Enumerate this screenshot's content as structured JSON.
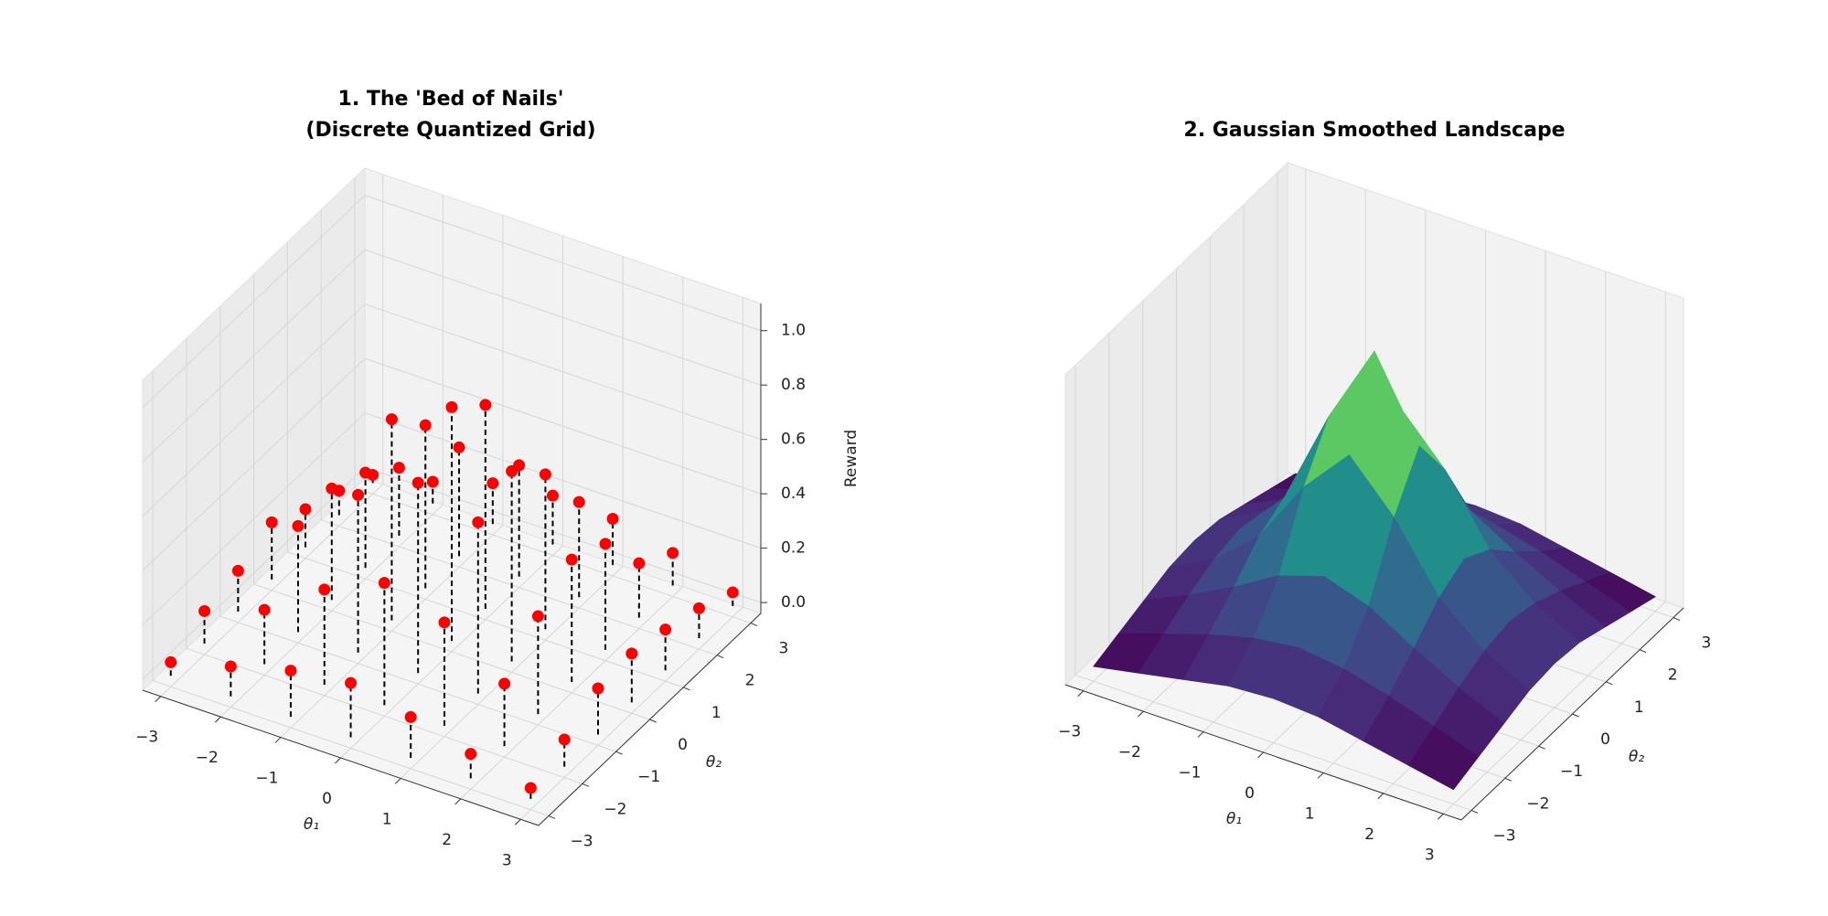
{
  "chart_data": [
    {
      "type": "stem3d",
      "title": [
        "1. The 'Bed of Nails'",
        "(Discrete Quantized Grid)"
      ],
      "xlabel": "θ₁",
      "ylabel": "θ₂",
      "zlabel": "Reward",
      "x": [
        -3,
        -2,
        -1,
        0,
        1,
        2,
        3
      ],
      "y": [
        -3,
        -2,
        -1,
        0,
        1,
        2,
        3
      ],
      "z": [
        [
          0.05,
          0.12,
          0.15,
          0.21,
          0.14,
          0.09,
          0.03
        ],
        [
          0.11,
          0.2,
          0.39,
          0.41,
          0.35,
          0.25,
          0.08
        ],
        [
          0.17,
          0.35,
          0.58,
          0.74,
          0.6,
          0.4,
          0.15
        ],
        [
          0.2,
          0.45,
          0.7,
          0.86,
          0.75,
          0.41,
          0.18
        ],
        [
          0.15,
          0.38,
          0.63,
          0.7,
          0.57,
          0.35,
          0.17
        ],
        [
          0.09,
          0.23,
          0.36,
          0.45,
          0.39,
          0.2,
          0.12
        ],
        [
          0.04,
          0.1,
          0.17,
          0.18,
          0.15,
          0.11,
          0.05
        ]
      ],
      "color": "#ff0000",
      "stem_color": "#000000",
      "xlim": [
        -3.3,
        3.3
      ],
      "ylim": [
        -3.3,
        3.3
      ],
      "zlim": [
        -0.04,
        1.1
      ],
      "xticks": [
        {
          "value": -3,
          "label": "−3"
        },
        {
          "value": -2,
          "label": "−2"
        },
        {
          "value": -1,
          "label": "−1"
        },
        0,
        1,
        2,
        3
      ],
      "yticks": [
        {
          "value": -3,
          "label": "−3"
        },
        {
          "value": -2,
          "label": "−2"
        },
        {
          "value": -1,
          "label": "−1"
        },
        0,
        1,
        2,
        3
      ],
      "zticks": [
        {
          "value": 0,
          "label": "0.0"
        },
        0.2,
        0.4,
        0.6,
        0.8,
        {
          "value": 1,
          "label": "1.0"
        }
      ],
      "grid": true
    },
    {
      "type": "surface",
      "title": [
        "2. Gaussian Smoothed Landscape"
      ],
      "xlabel": "θ₁",
      "ylabel": "θ₂",
      "x": [
        -3,
        -2.25,
        -1.5,
        -0.75,
        0,
        0.75,
        1.5,
        2.25,
        3
      ],
      "y": [
        -3,
        -2.25,
        -1.5,
        -0.75,
        0,
        0.75,
        1.5,
        2.25,
        3
      ],
      "z": [
        [
          0.05,
          0.08,
          0.11,
          0.14,
          0.15,
          0.14,
          0.11,
          0.08,
          0.05
        ],
        [
          0.08,
          0.13,
          0.18,
          0.22,
          0.24,
          0.22,
          0.18,
          0.13,
          0.08
        ],
        [
          0.11,
          0.18,
          0.26,
          0.35,
          0.4,
          0.35,
          0.26,
          0.18,
          0.11
        ],
        [
          0.14,
          0.22,
          0.35,
          0.57,
          0.73,
          0.57,
          0.35,
          0.22,
          0.14
        ],
        [
          0.15,
          0.24,
          0.4,
          0.73,
          1.0,
          0.73,
          0.4,
          0.24,
          0.15
        ],
        [
          0.14,
          0.22,
          0.35,
          0.57,
          0.73,
          0.57,
          0.35,
          0.22,
          0.14
        ],
        [
          0.11,
          0.18,
          0.26,
          0.35,
          0.4,
          0.35,
          0.26,
          0.18,
          0.11
        ],
        [
          0.08,
          0.13,
          0.18,
          0.22,
          0.24,
          0.22,
          0.18,
          0.13,
          0.08
        ],
        [
          0.05,
          0.08,
          0.11,
          0.14,
          0.15,
          0.14,
          0.11,
          0.08,
          0.05
        ]
      ],
      "colormap": "viridis",
      "xlim": [
        -3.3,
        3.3
      ],
      "ylim": [
        -3.3,
        3.3
      ],
      "zlim": [
        0,
        1.05
      ],
      "xticks": [
        {
          "value": -3,
          "label": "−3"
        },
        {
          "value": -2,
          "label": "−2"
        },
        {
          "value": -1,
          "label": "−1"
        },
        0,
        1,
        2,
        3
      ],
      "yticks": [
        {
          "value": -3,
          "label": "−3"
        },
        {
          "value": -2,
          "label": "−2"
        },
        {
          "value": -1,
          "label": "−1"
        },
        0,
        1,
        2,
        3
      ],
      "grid": true
    }
  ]
}
